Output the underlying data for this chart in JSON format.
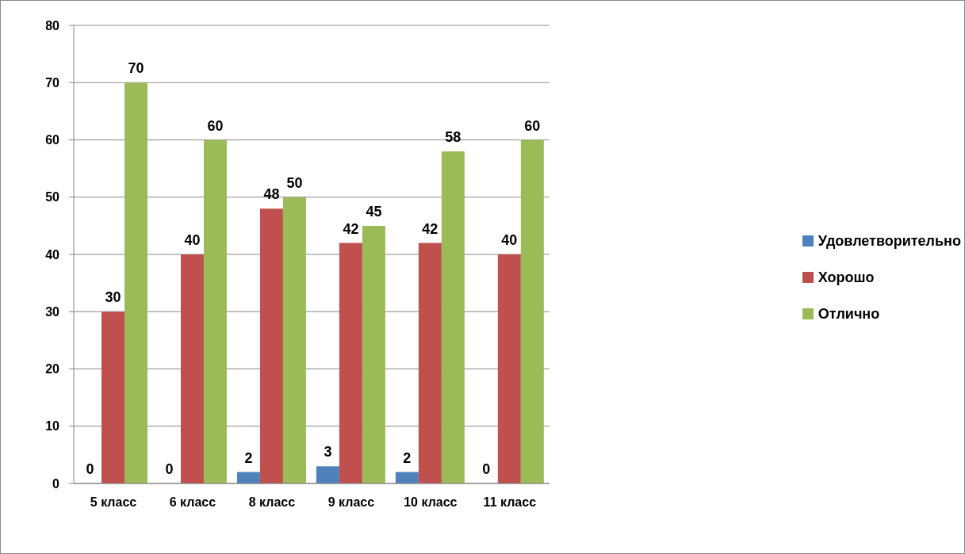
{
  "chart_data": {
    "type": "bar",
    "categories": [
      "5 класс",
      "6 класс",
      "8 класс",
      "9 класс",
      "10 класс",
      "11 класс"
    ],
    "series": [
      {
        "name": "Удовлетворительно",
        "color": "#4f81bd",
        "values": [
          0,
          0,
          2,
          3,
          2,
          0
        ]
      },
      {
        "name": "Хорошо",
        "color": "#c0504d",
        "values": [
          30,
          40,
          48,
          42,
          42,
          40
        ]
      },
      {
        "name": "Отлично",
        "color": "#9bbb59",
        "values": [
          70,
          60,
          50,
          45,
          58,
          60
        ]
      }
    ],
    "ylim": [
      0,
      80
    ],
    "yticks": [
      0,
      10,
      20,
      30,
      40,
      50,
      60,
      70,
      80
    ],
    "grid": "y",
    "legend": "right",
    "data_labels": true
  }
}
